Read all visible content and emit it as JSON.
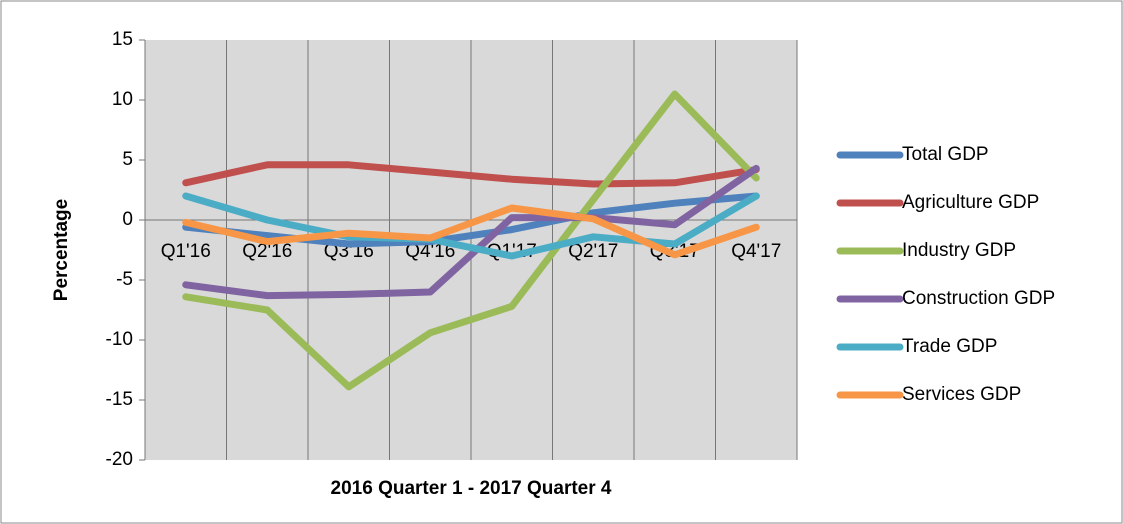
{
  "chart_data": {
    "type": "line",
    "xlabel": "2016 Quarter 1 - 2017 Quarter 4",
    "ylabel": "Percentage",
    "categories": [
      "Q1'16",
      "Q2'16",
      "Q3'16",
      "Q4'16",
      "Q1'17",
      "Q2'17",
      "Q3'17",
      "Q4'17"
    ],
    "series": [
      {
        "name": "Total GDP",
        "color": "#4f81bd",
        "values": [
          -0.6,
          -1.3,
          -2.0,
          -1.8,
          -0.8,
          0.6,
          1.4,
          2.0
        ]
      },
      {
        "name": "Agriculture GDP",
        "color": "#c0504d",
        "values": [
          3.1,
          4.6,
          4.6,
          4.0,
          3.4,
          3.0,
          3.1,
          4.2
        ]
      },
      {
        "name": "Industry GDP",
        "color": "#9bbb59",
        "values": [
          -6.4,
          -7.5,
          -13.9,
          -9.4,
          -7.2,
          1.7,
          10.5,
          3.5
        ]
      },
      {
        "name": "Construction GDP",
        "color": "#8064a2",
        "values": [
          -5.4,
          -6.3,
          -6.2,
          -6.0,
          0.2,
          0.2,
          -0.4,
          4.3
        ]
      },
      {
        "name": "Trade GDP",
        "color": "#4bacc6",
        "values": [
          2.0,
          0.0,
          -1.4,
          -1.6,
          -3.0,
          -1.4,
          -2.0,
          2.0
        ]
      },
      {
        "name": "Services GDP",
        "color": "#f79646",
        "values": [
          -0.2,
          -1.8,
          -1.1,
          -1.5,
          1.0,
          0.1,
          -2.9,
          -0.6
        ]
      }
    ],
    "ylim": [
      -20,
      15
    ],
    "yticks": [
      -20,
      -15,
      -10,
      -5,
      0,
      5,
      10,
      15
    ],
    "legend": "right"
  }
}
